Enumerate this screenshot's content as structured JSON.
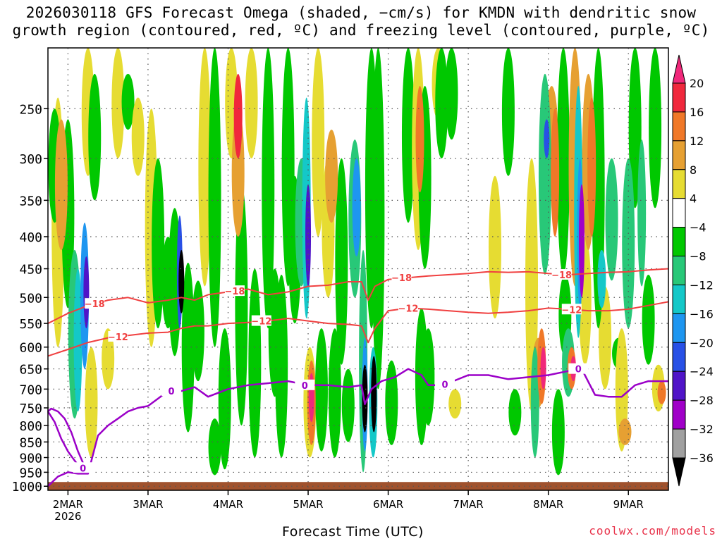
{
  "chart_data": {
    "type": "heatmap",
    "title_line1": "2026030118 GFS Forecast Omega (shaded, −cm/s) for KMDN with dendritic snow",
    "title_line2": "growth region (contoured, red, ºC) and freezing level (contoured, purple, ºC)",
    "xlabel": "Forecast Time (UTC)",
    "ylabel": "",
    "y_scale": "log-pressure",
    "y_range_hpa": [
      200,
      1015
    ],
    "y_ticks": [
      250,
      300,
      350,
      400,
      450,
      500,
      550,
      600,
      650,
      700,
      750,
      800,
      850,
      900,
      950,
      1000
    ],
    "x_range_hours": [
      0,
      186
    ],
    "x_ticks": [
      {
        "label": "2MAR",
        "sublabel": "2026",
        "hour": 6
      },
      {
        "label": "3MAR",
        "sublabel": "",
        "hour": 30
      },
      {
        "label": "4MAR",
        "sublabel": "",
        "hour": 54
      },
      {
        "label": "5MAR",
        "sublabel": "",
        "hour": 78
      },
      {
        "label": "6MAR",
        "sublabel": "",
        "hour": 102
      },
      {
        "label": "7MAR",
        "sublabel": "",
        "hour": 126
      },
      {
        "label": "8MAR",
        "sublabel": "",
        "hour": 150
      },
      {
        "label": "9MAR",
        "sublabel": "",
        "hour": 174
      }
    ],
    "grid": "dotted",
    "colorbar": {
      "labels": [
        "20",
        "16",
        "12",
        "8",
        "4",
        "−4",
        "−8",
        "−12",
        "−16",
        "−20",
        "−24",
        "−28",
        "−32",
        "−36"
      ],
      "bins": [
        {
          "lo": 20,
          "hi": null,
          "color": "#f0287a"
        },
        {
          "lo": 16,
          "hi": 20,
          "color": "#f0283c"
        },
        {
          "lo": 12,
          "hi": 16,
          "color": "#f07828"
        },
        {
          "lo": 8,
          "hi": 12,
          "color": "#e6a032"
        },
        {
          "lo": 4,
          "hi": 8,
          "color": "#e6dc32"
        },
        {
          "lo": -4,
          "hi": 4,
          "color": "#ffffff"
        },
        {
          "lo": -8,
          "hi": -4,
          "color": "#00c800"
        },
        {
          "lo": -12,
          "hi": -8,
          "color": "#28c878"
        },
        {
          "lo": -16,
          "hi": -12,
          "color": "#14c8c8"
        },
        {
          "lo": -20,
          "hi": -16,
          "color": "#1e96f0"
        },
        {
          "lo": -24,
          "hi": -20,
          "color": "#2850e6"
        },
        {
          "lo": -28,
          "hi": -24,
          "color": "#5014c8"
        },
        {
          "lo": -32,
          "hi": -28,
          "color": "#a000c8"
        },
        {
          "lo": -36,
          "hi": -32,
          "color": "#a0a0a0"
        },
        {
          "lo": null,
          "hi": -36,
          "color": "#000000"
        }
      ]
    },
    "omega_features": [
      {
        "hour": 3,
        "p_top": 240,
        "p_bot": 600,
        "value": 5
      },
      {
        "hour": 4,
        "p_top": 260,
        "p_bot": 420,
        "value": 10
      },
      {
        "hour": 2,
        "p_top": 250,
        "p_bot": 380,
        "value": -5
      },
      {
        "hour": 6,
        "p_top": 260,
        "p_bot": 520,
        "value": -6
      },
      {
        "hour": 8,
        "p_top": 420,
        "p_bot": 780,
        "value": -10
      },
      {
        "hour": 9,
        "p_top": 450,
        "p_bot": 760,
        "value": -14
      },
      {
        "hour": 11,
        "p_top": 380,
        "p_bot": 650,
        "value": -18
      },
      {
        "hour": 11.5,
        "p_top": 430,
        "p_bot": 560,
        "value": -26
      },
      {
        "hour": 12,
        "p_top": 200,
        "p_bot": 320,
        "value": 6
      },
      {
        "hour": 13,
        "p_top": 600,
        "p_bot": 900,
        "value": 6
      },
      {
        "hour": 14,
        "p_top": 220,
        "p_bot": 350,
        "value": -6
      },
      {
        "hour": 18,
        "p_top": 560,
        "p_bot": 700,
        "value": 5
      },
      {
        "hour": 21,
        "p_top": 200,
        "p_bot": 300,
        "value": 5
      },
      {
        "hour": 24,
        "p_top": 220,
        "p_bot": 270,
        "value": -5
      },
      {
        "hour": 27,
        "p_top": 240,
        "p_bot": 320,
        "value": 5
      },
      {
        "hour": 31,
        "p_top": 250,
        "p_bot": 600,
        "value": 5
      },
      {
        "hour": 33,
        "p_top": 300,
        "p_bot": 560,
        "value": -6
      },
      {
        "hour": 36,
        "p_top": 400,
        "p_bot": 560,
        "value": -6
      },
      {
        "hour": 38,
        "p_top": 360,
        "p_bot": 620,
        "value": -8
      },
      {
        "hour": 39.5,
        "p_top": 370,
        "p_bot": 560,
        "value": -22
      },
      {
        "hour": 40,
        "p_top": 420,
        "p_bot": 530,
        "value": -40
      },
      {
        "hour": 42,
        "p_top": 440,
        "p_bot": 820,
        "value": -6
      },
      {
        "hour": 45,
        "p_top": 470,
        "p_bot": 680,
        "value": -6
      },
      {
        "hour": 47,
        "p_top": 200,
        "p_bot": 480,
        "value": 5
      },
      {
        "hour": 50,
        "p_top": 200,
        "p_bot": 600,
        "value": -5
      },
      {
        "hour": 50,
        "p_top": 780,
        "p_bot": 960,
        "value": -6
      },
      {
        "hour": 53,
        "p_top": 560,
        "p_bot": 940,
        "value": -8
      },
      {
        "hour": 55,
        "p_top": 200,
        "p_bot": 300,
        "value": 6
      },
      {
        "hour": 57,
        "p_top": 220,
        "p_bot": 300,
        "value": 18
      },
      {
        "hour": 57,
        "p_top": 250,
        "p_bot": 400,
        "value": 8
      },
      {
        "hour": 58,
        "p_top": 330,
        "p_bot": 800,
        "value": -6
      },
      {
        "hour": 61,
        "p_top": 200,
        "p_bot": 300,
        "value": 5
      },
      {
        "hour": 62,
        "p_top": 450,
        "p_bot": 900,
        "value": -6
      },
      {
        "hour": 66,
        "p_top": 200,
        "p_bot": 560,
        "value": -6
      },
      {
        "hour": 68,
        "p_top": 450,
        "p_bot": 720,
        "value": -6
      },
      {
        "hour": 70,
        "p_top": 460,
        "p_bot": 900,
        "value": -6
      },
      {
        "hour": 72,
        "p_top": 200,
        "p_bot": 480,
        "value": -6
      },
      {
        "hour": 74,
        "p_top": 320,
        "p_bot": 550,
        "value": -6
      },
      {
        "hour": 76,
        "p_top": 300,
        "p_bot": 480,
        "value": -10
      },
      {
        "hour": 77.5,
        "p_top": 240,
        "p_bot": 540,
        "value": -14
      },
      {
        "hour": 78,
        "p_top": 330,
        "p_bot": 480,
        "value": -26
      },
      {
        "hour": 78.5,
        "p_top": 600,
        "p_bot": 900,
        "value": 6
      },
      {
        "hour": 79,
        "p_top": 630,
        "p_bot": 860,
        "value": 14
      },
      {
        "hour": 79,
        "p_top": 660,
        "p_bot": 790,
        "value": 22
      },
      {
        "hour": 81,
        "p_top": 200,
        "p_bot": 400,
        "value": 5
      },
      {
        "hour": 82,
        "p_top": 560,
        "p_bot": 880,
        "value": -6
      },
      {
        "hour": 84,
        "p_top": 300,
        "p_bot": 500,
        "value": 5
      },
      {
        "hour": 85,
        "p_top": 270,
        "p_bot": 380,
        "value": 10
      },
      {
        "hour": 86,
        "p_top": 560,
        "p_bot": 900,
        "value": -8
      },
      {
        "hour": 88,
        "p_top": 300,
        "p_bot": 640,
        "value": -6
      },
      {
        "hour": 90,
        "p_top": 650,
        "p_bot": 850,
        "value": -8
      },
      {
        "hour": 92,
        "p_top": 280,
        "p_bot": 500,
        "value": -10
      },
      {
        "hour": 92.5,
        "p_top": 300,
        "p_bot": 430,
        "value": -18
      },
      {
        "hour": 94.5,
        "p_top": 420,
        "p_bot": 950,
        "value": -12
      },
      {
        "hour": 95,
        "p_top": 580,
        "p_bot": 880,
        "value": -20
      },
      {
        "hour": 95,
        "p_top": 640,
        "p_bot": 820,
        "value": -40
      },
      {
        "hour": 97,
        "p_top": 200,
        "p_bot": 560,
        "value": -6
      },
      {
        "hour": 97.5,
        "p_top": 600,
        "p_bot": 900,
        "value": -14
      },
      {
        "hour": 97.7,
        "p_top": 620,
        "p_bot": 820,
        "value": -40
      },
      {
        "hour": 99,
        "p_top": 200,
        "p_bot": 700,
        "value": -5
      },
      {
        "hour": 103,
        "p_top": 630,
        "p_bot": 860,
        "value": -6
      },
      {
        "hour": 108,
        "p_top": 200,
        "p_bot": 380,
        "value": -6
      },
      {
        "hour": 111,
        "p_top": 200,
        "p_bot": 420,
        "value": 6
      },
      {
        "hour": 111.5,
        "p_top": 230,
        "p_bot": 340,
        "value": 12
      },
      {
        "hour": 112,
        "p_top": 520,
        "p_bot": 860,
        "value": -8
      },
      {
        "hour": 113,
        "p_top": 230,
        "p_bot": 450,
        "value": -6
      },
      {
        "hour": 114,
        "p_top": 560,
        "p_bot": 800,
        "value": -6
      },
      {
        "hour": 117,
        "p_top": 200,
        "p_bot": 260,
        "value": 6
      },
      {
        "hour": 118,
        "p_top": 200,
        "p_bot": 300,
        "value": -8
      },
      {
        "hour": 121,
        "p_top": 200,
        "p_bot": 280,
        "value": -6
      },
      {
        "hour": 122,
        "p_top": 700,
        "p_bot": 780,
        "value": 5
      },
      {
        "hour": 134,
        "p_top": 320,
        "p_bot": 540,
        "value": 5
      },
      {
        "hour": 138,
        "p_top": 200,
        "p_bot": 320,
        "value": -6
      },
      {
        "hour": 140,
        "p_top": 700,
        "p_bot": 830,
        "value": -8
      },
      {
        "hour": 145,
        "p_top": 300,
        "p_bot": 760,
        "value": 5
      },
      {
        "hour": 146,
        "p_top": 600,
        "p_bot": 900,
        "value": -12
      },
      {
        "hour": 147,
        "p_top": 580,
        "p_bot": 750,
        "value": 8
      },
      {
        "hour": 148,
        "p_top": 560,
        "p_bot": 740,
        "value": 14
      },
      {
        "hour": 148.5,
        "p_top": 600,
        "p_bot": 700,
        "value": 22
      },
      {
        "hour": 149,
        "p_top": 220,
        "p_bot": 460,
        "value": -10
      },
      {
        "hour": 149.5,
        "p_top": 260,
        "p_bot": 300,
        "value": -22
      },
      {
        "hour": 151,
        "p_top": 230,
        "p_bot": 330,
        "value": 8
      },
      {
        "hour": 152,
        "p_top": 250,
        "p_bot": 400,
        "value": 12
      },
      {
        "hour": 153,
        "p_top": 700,
        "p_bot": 960,
        "value": -8
      },
      {
        "hour": 154.5,
        "p_top": 200,
        "p_bot": 460,
        "value": -8
      },
      {
        "hour": 155,
        "p_top": 460,
        "p_bot": 620,
        "value": -6
      },
      {
        "hour": 156,
        "p_top": 560,
        "p_bot": 720,
        "value": -10
      },
      {
        "hour": 157,
        "p_top": 600,
        "p_bot": 700,
        "value": 14
      },
      {
        "hour": 157.5,
        "p_top": 620,
        "p_bot": 680,
        "value": 22
      },
      {
        "hour": 158,
        "p_top": 200,
        "p_bot": 480,
        "value": 8
      },
      {
        "hour": 159,
        "p_top": 230,
        "p_bot": 580,
        "value": -14
      },
      {
        "hour": 159.5,
        "p_top": 300,
        "p_bot": 520,
        "value": -20
      },
      {
        "hour": 160,
        "p_top": 330,
        "p_bot": 500,
        "value": -30
      },
      {
        "hour": 161,
        "p_top": 400,
        "p_bot": 640,
        "value": 6
      },
      {
        "hour": 162,
        "p_top": 220,
        "p_bot": 420,
        "value": 10
      },
      {
        "hour": 163,
        "p_top": 240,
        "p_bot": 400,
        "value": 14
      },
      {
        "hour": 165,
        "p_top": 200,
        "p_bot": 560,
        "value": -8
      },
      {
        "hour": 166,
        "p_top": 420,
        "p_bot": 520,
        "value": -14
      },
      {
        "hour": 167,
        "p_top": 480,
        "p_bot": 700,
        "value": 6
      },
      {
        "hour": 169,
        "p_top": 300,
        "p_bot": 470,
        "value": -10
      },
      {
        "hour": 171,
        "p_top": 580,
        "p_bot": 650,
        "value": -6
      },
      {
        "hour": 172,
        "p_top": 560,
        "p_bot": 880,
        "value": 6
      },
      {
        "hour": 173,
        "p_top": 780,
        "p_bot": 860,
        "value": 10
      },
      {
        "hour": 174,
        "p_top": 300,
        "p_bot": 560,
        "value": -10
      },
      {
        "hour": 176,
        "p_top": 200,
        "p_bot": 360,
        "value": -8
      },
      {
        "hour": 178,
        "p_top": 280,
        "p_bot": 480,
        "value": -12
      },
      {
        "hour": 180,
        "p_top": 460,
        "p_bot": 640,
        "value": -8
      },
      {
        "hour": 182,
        "p_top": 200,
        "p_bot": 360,
        "value": -6
      },
      {
        "hour": 183,
        "p_top": 640,
        "p_bot": 760,
        "value": 6
      },
      {
        "hour": 184,
        "p_top": 680,
        "p_bot": 740,
        "value": 12
      }
    ],
    "isotherm_minus18": {
      "label": "−18",
      "color": "#f04040",
      "hours": [
        0,
        6,
        12,
        18,
        24,
        30,
        36,
        40,
        44,
        48,
        54,
        60,
        66,
        72,
        78,
        84,
        90,
        94,
        96,
        98,
        102,
        108,
        114,
        120,
        126,
        132,
        138,
        144,
        150,
        156,
        162,
        168,
        174,
        180,
        186
      ],
      "pressures": [
        550,
        530,
        515,
        505,
        500,
        510,
        505,
        500,
        505,
        495,
        490,
        485,
        495,
        490,
        480,
        478,
        472,
        472,
        505,
        480,
        468,
        465,
        462,
        460,
        458,
        455,
        456,
        455,
        458,
        460,
        458,
        456,
        455,
        452,
        450
      ]
    },
    "isotherm_minus12": {
      "label": "−12",
      "color": "#f04040",
      "hours": [
        0,
        6,
        12,
        18,
        24,
        30,
        36,
        40,
        44,
        48,
        54,
        60,
        66,
        72,
        78,
        84,
        90,
        94,
        96,
        98,
        102,
        108,
        114,
        120,
        126,
        132,
        138,
        144,
        150,
        156,
        162,
        168,
        174,
        180,
        186
      ],
      "pressures": [
        620,
        605,
        590,
        580,
        575,
        570,
        568,
        560,
        555,
        555,
        550,
        548,
        545,
        540,
        545,
        550,
        552,
        555,
        590,
        560,
        525,
        520,
        522,
        525,
        528,
        530,
        528,
        525,
        520,
        522,
        525,
        525,
        522,
        515,
        508
      ]
    },
    "freezing_level": {
      "label": "0",
      "color": "#9b00c8",
      "hours": [
        0,
        3,
        6,
        9,
        12,
        15,
        18,
        21,
        24,
        27,
        30,
        33,
        36,
        40,
        44,
        48,
        54,
        60,
        66,
        72,
        78,
        84,
        90,
        94,
        95,
        97,
        100,
        104,
        108,
        112,
        114,
        118,
        120,
        126,
        132,
        138,
        144,
        150,
        156,
        160,
        164,
        168,
        172,
        176,
        180,
        186
      ],
      "pressures": [
        1000,
        965,
        950,
        955,
        955,
        830,
        800,
        780,
        760,
        750,
        745,
        725,
        705,
        705,
        695,
        720,
        700,
        690,
        685,
        680,
        690,
        690,
        695,
        690,
        740,
        700,
        680,
        670,
        650,
        665,
        690,
        690,
        685,
        665,
        665,
        675,
        670,
        665,
        655,
        650,
        715,
        720,
        720,
        690,
        680,
        680
      ]
    },
    "freezing_level_loop": {
      "label": "0",
      "hours": [
        0,
        2,
        4,
        6,
        8,
        10,
        11,
        9,
        7,
        5,
        3,
        1,
        0
      ],
      "pressures": [
        760,
        790,
        840,
        880,
        910,
        940,
        930,
        880,
        820,
        780,
        760,
        752,
        760
      ]
    }
  },
  "credit": "coolwx.com/models"
}
